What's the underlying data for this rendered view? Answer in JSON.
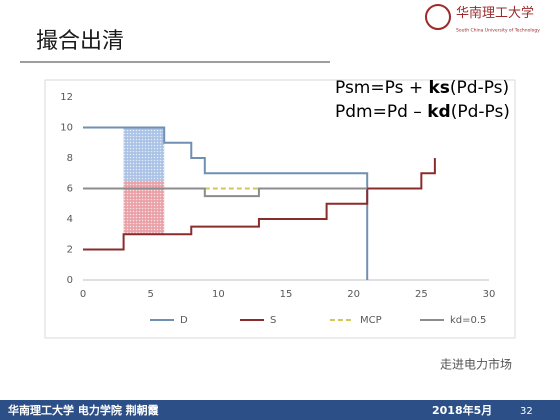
{
  "slide": {
    "title": "撮合出清",
    "logo_text": "华南理工大学",
    "logo_subtext": "South China University of Technology",
    "formulas": [
      [
        "Psm=Ps + ",
        "ks",
        "(Pd-Ps)"
      ],
      [
        "Pdm=Pd – ",
        "kd",
        "(Pd-Ps)"
      ]
    ],
    "watermark": "走进电力市场",
    "footer_left": "华南理工大学 电力学院 荆朝霞",
    "footer_date": "2018年5月",
    "page_number": "32"
  },
  "chart_data": {
    "type": "line",
    "xlim": [
      0,
      30
    ],
    "xticks": [
      0,
      5,
      10,
      15,
      20,
      25,
      30
    ],
    "ylim": [
      0,
      12
    ],
    "yticks": [
      0,
      2,
      4,
      6,
      8,
      10,
      12
    ],
    "grid": false,
    "legend": "bottom",
    "series": [
      {
        "name": "D",
        "color": "#6f8fb3",
        "dash": false,
        "x": [
          0,
          6,
          6,
          8,
          8,
          9,
          9,
          21,
          21
        ],
        "values": [
          10,
          10,
          9,
          9,
          8,
          8,
          7,
          7,
          0
        ]
      },
      {
        "name": "S",
        "color": "#8b2c2c",
        "dash": false,
        "x": [
          0,
          3,
          3,
          8,
          8,
          13,
          13,
          18,
          18,
          21,
          21,
          25,
          25,
          26,
          26
        ],
        "values": [
          2,
          2,
          3,
          3,
          3.5,
          3.5,
          4,
          4,
          5,
          5,
          6,
          6,
          7,
          7,
          8
        ]
      },
      {
        "name": "MCP",
        "color": "#d4c65a",
        "dash": true,
        "x": [
          9,
          18
        ],
        "values": [
          6,
          6
        ]
      },
      {
        "name": "kd=0.5",
        "color": "#8c8c8c",
        "dash": false,
        "x": [
          0,
          9,
          9,
          13,
          13,
          21
        ],
        "values": [
          6,
          6,
          5.5,
          5.5,
          6,
          6
        ]
      }
    ],
    "shaded_regions": [
      {
        "color": "#a9c2e6",
        "x": [
          3,
          6
        ],
        "y": [
          6.5,
          10
        ]
      },
      {
        "color": "#e9a0a6",
        "x": [
          3,
          6
        ],
        "y": [
          3,
          6.5
        ]
      }
    ]
  }
}
